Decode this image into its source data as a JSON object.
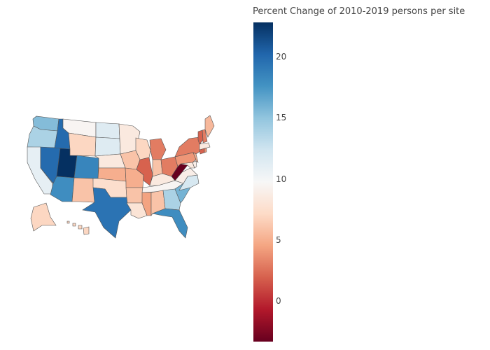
{
  "colorbar": {
    "title": "Percent Change of 2010-2019 persons per site",
    "min": -3.3,
    "max": 22.9,
    "ticks": [
      {
        "value": 20,
        "label": "20"
      },
      {
        "value": 15,
        "label": "15"
      },
      {
        "value": 10,
        "label": "10"
      },
      {
        "value": 5,
        "label": "5"
      },
      {
        "value": 0,
        "label": "0"
      }
    ],
    "stops": [
      "#67001f",
      "#b2182b",
      "#d6604d",
      "#f4a582",
      "#fddbc7",
      "#f7f7f7",
      "#d1e5f0",
      "#92c5de",
      "#4393c3",
      "#2166ac",
      "#053061"
    ]
  },
  "chart_data": {
    "type": "choropleth",
    "title": "Percent Change of 2010-2019 persons per site",
    "value_range": [
      -3.3,
      22.9
    ],
    "values": {
      "WA": 15.5,
      "OR": 14.0,
      "CA": 11.0,
      "NV": 20.0,
      "ID": 20.0,
      "UT": 22.9,
      "AZ": 18.0,
      "MT": 9.5,
      "WY": 7.0,
      "CO": 18.5,
      "NM": 6.0,
      "ND": 11.5,
      "SD": 11.5,
      "NE": 8.5,
      "KS": 5.0,
      "OK": 7.5,
      "TX": 19.5,
      "MN": 8.5,
      "IA": 6.0,
      "MO": 5.0,
      "AR": 6.0,
      "LA": 8.0,
      "WI": 7.0,
      "IL": 2.0,
      "MI": 3.0,
      "IN": 6.0,
      "OH": 3.0,
      "KY": 8.5,
      "TN": 9.5,
      "MS": 4.5,
      "AL": 6.0,
      "GA": 14.0,
      "FL": 18.0,
      "SC": 16.0,
      "NC": 12.0,
      "VA": 9.0,
      "WV": -3.3,
      "MD": 8.5,
      "DE": 9.0,
      "PA": 4.0,
      "NY": 3.0,
      "NJ": 5.0,
      "CT": 2.0,
      "RI": 4.0,
      "MA": 8.5,
      "VT": 2.0,
      "NH": 3.0,
      "ME": 5.5,
      "AK": 7.0,
      "HI": 7.0
    }
  }
}
